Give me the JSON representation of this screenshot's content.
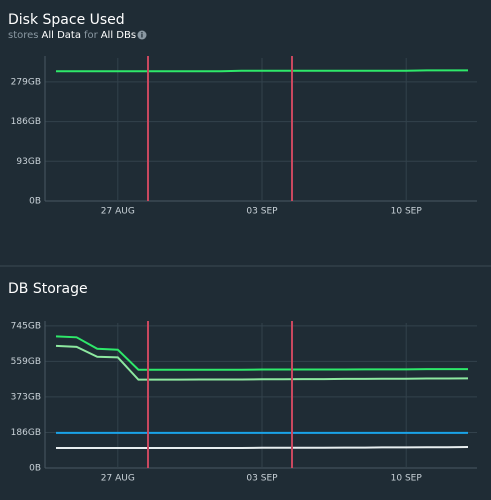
{
  "chart_data": [
    {
      "type": "line",
      "title": "Disk Space Used",
      "subtitle": [
        "stores",
        "All Data",
        "for",
        "All DBs"
      ],
      "categories": [
        null,
        null,
        null,
        "27 AUG",
        null,
        null,
        null,
        null,
        null,
        null,
        "03 SEP",
        null,
        null,
        null,
        null,
        null,
        null,
        "10 SEP",
        null,
        null,
        null
      ],
      "series": [
        {
          "color": "#2ee86a",
          "values": [
            304,
            304,
            304,
            304,
            304,
            304,
            304,
            304,
            304,
            305,
            305,
            305,
            305,
            305,
            305,
            305,
            305,
            305,
            306,
            306,
            306
          ]
        }
      ],
      "ylim": [
        0,
        335
      ],
      "yticks": [
        {
          "value": 0,
          "label": "0B"
        },
        {
          "value": 93,
          "label": "93GB"
        },
        {
          "value": 186,
          "label": "186GB"
        },
        {
          "value": 279,
          "label": "279GB"
        }
      ],
      "grid": true
    },
    {
      "type": "line",
      "title": "DB Storage",
      "categories": [
        null,
        null,
        null,
        "27 AUG",
        null,
        null,
        null,
        null,
        null,
        null,
        "03 SEP",
        null,
        null,
        null,
        null,
        null,
        null,
        "10 SEP",
        null,
        null,
        null
      ],
      "series": [
        {
          "color": "#2ee86a",
          "values": [
            690,
            685,
            625,
            620,
            515,
            515,
            515,
            515,
            515,
            515,
            516,
            516,
            516,
            516,
            516,
            517,
            517,
            517,
            518,
            518,
            518
          ]
        },
        {
          "color": "#8de8a0",
          "values": [
            640,
            635,
            583,
            580,
            463,
            463,
            463,
            464,
            464,
            464,
            465,
            465,
            466,
            466,
            467,
            467,
            468,
            468,
            469,
            469,
            470
          ]
        },
        {
          "color": "#1aa3e8",
          "values": [
            184,
            184,
            184,
            184,
            184,
            184,
            184,
            184,
            184,
            184,
            184,
            184,
            184,
            184,
            184,
            184,
            184,
            184,
            184,
            184,
            184
          ]
        },
        {
          "color": "#e8eef0",
          "values": [
            105,
            105,
            105,
            105,
            105,
            105,
            105,
            105,
            105,
            105,
            106,
            106,
            106,
            106,
            107,
            107,
            108,
            108,
            109,
            109,
            110
          ]
        }
      ],
      "ylim": [
        0,
        760
      ],
      "yticks": [
        {
          "value": 0,
          "label": "0B"
        },
        {
          "value": 186,
          "label": "186GB"
        },
        {
          "value": 373,
          "label": "373GB"
        },
        {
          "value": 559,
          "label": "559GB"
        },
        {
          "value": 745,
          "label": "745GB"
        }
      ],
      "grid": true
    }
  ]
}
